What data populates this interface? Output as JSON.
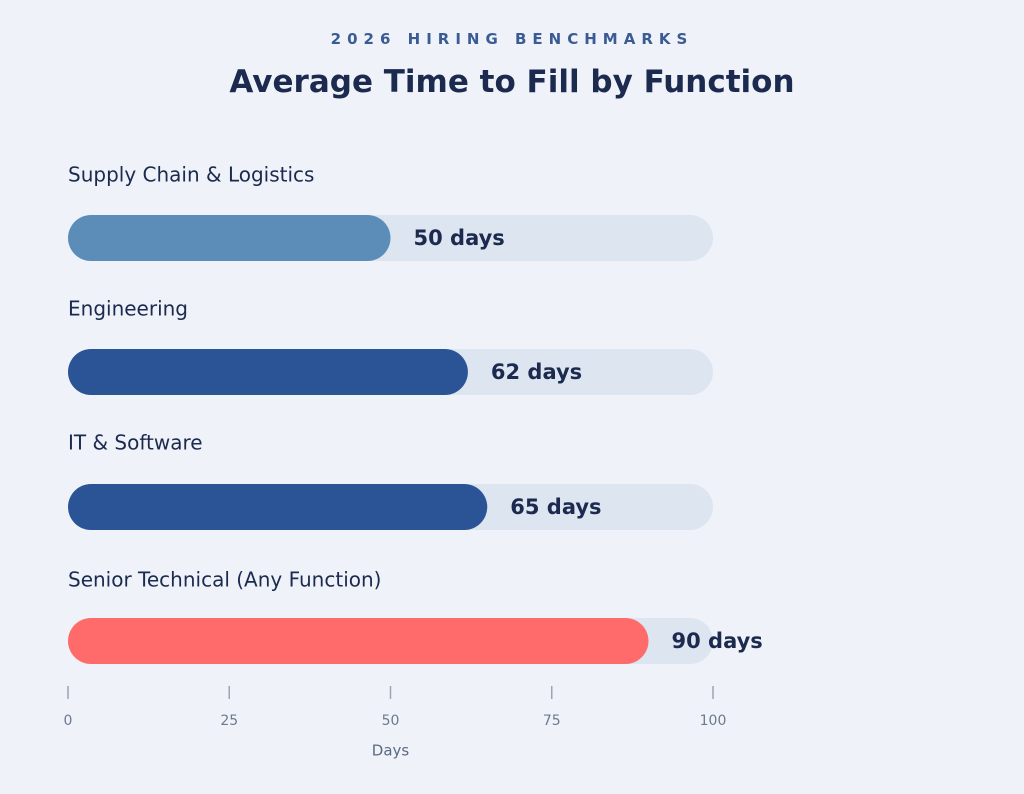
{
  "header": {
    "eyebrow": "2026 HIRING BENCHMARKS",
    "title": "Average Time to Fill by Function"
  },
  "colors": {
    "track": "#dde5f0",
    "bars": [
      "#5b8db8",
      "#2a5496",
      "#2a5496",
      "#ff6b6b"
    ],
    "tick": "#9aa5b5"
  },
  "chart_data": {
    "type": "bar",
    "orientation": "horizontal",
    "categories": [
      "Supply Chain & Logistics",
      "Engineering",
      "IT & Software",
      "Senior Technical (Any Function)"
    ],
    "values": [
      50,
      62,
      65,
      90
    ],
    "value_labels": [
      "50 days",
      "62 days",
      "65 days",
      "90 days"
    ],
    "xlabel": "Days",
    "xlim": [
      0,
      100
    ],
    "xticks": [
      "0",
      "25",
      "50",
      "75",
      "100"
    ],
    "grid": false
  }
}
